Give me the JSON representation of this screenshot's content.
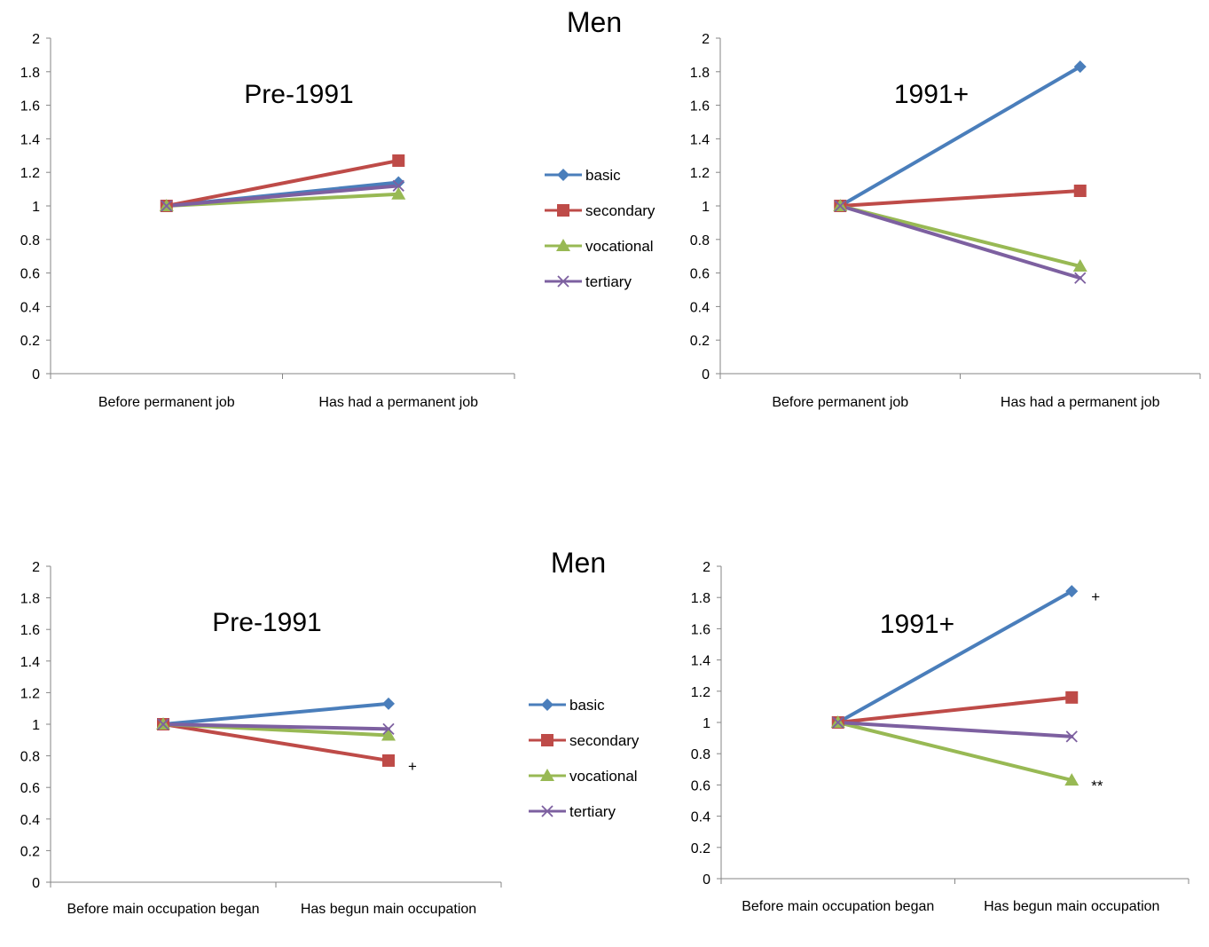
{
  "series_styles": [
    {
      "name": "basic",
      "color": "#4a7ebb",
      "marker": "diamond"
    },
    {
      "name": "secondary",
      "color": "#be4b48",
      "marker": "square"
    },
    {
      "name": "vocational",
      "color": "#98b954",
      "marker": "triangle"
    },
    {
      "name": "tertiary",
      "color": "#7d60a0",
      "marker": "x"
    }
  ],
  "chart_data": [
    {
      "type": "line",
      "group_title": "Men",
      "title": "Pre-1991",
      "categories": [
        "Before permanent job",
        "Has had a permanent job"
      ],
      "ylim": [
        0,
        2
      ],
      "yticks": [
        "0",
        "0.2",
        "0.4",
        "0.6",
        "0.8",
        "1",
        "1.2",
        "1.4",
        "1.6",
        "1.8",
        "2"
      ],
      "series": [
        {
          "name": "basic",
          "values": [
            1,
            1.14
          ]
        },
        {
          "name": "secondary",
          "values": [
            1,
            1.27
          ]
        },
        {
          "name": "vocational",
          "values": [
            1,
            1.07
          ]
        },
        {
          "name": "tertiary",
          "values": [
            1,
            1.12
          ]
        }
      ],
      "annotations": []
    },
    {
      "type": "line",
      "title": "1991+",
      "categories": [
        "Before permanent job",
        "Has had a permanent job"
      ],
      "ylim": [
        0,
        2
      ],
      "yticks": [
        "0",
        "0.2",
        "0.4",
        "0.6",
        "0.8",
        "1",
        "1.2",
        "1.4",
        "1.6",
        "1.8",
        "2"
      ],
      "series": [
        {
          "name": "basic",
          "values": [
            1,
            1.83
          ]
        },
        {
          "name": "secondary",
          "values": [
            1,
            1.09
          ]
        },
        {
          "name": "vocational",
          "values": [
            1,
            0.64
          ]
        },
        {
          "name": "tertiary",
          "values": [
            1,
            0.57
          ]
        }
      ],
      "annotations": []
    },
    {
      "type": "line",
      "group_title": "Men",
      "title": "Pre-1991",
      "categories": [
        "Before main occupation began",
        "Has begun main occupation"
      ],
      "ylim": [
        0,
        2
      ],
      "yticks": [
        "0",
        "0.2",
        "0.4",
        "0.6",
        "0.8",
        "1",
        "1.2",
        "1.4",
        "1.6",
        "1.8",
        "2"
      ],
      "series": [
        {
          "name": "basic",
          "values": [
            1,
            1.13
          ]
        },
        {
          "name": "secondary",
          "values": [
            1,
            0.77
          ]
        },
        {
          "name": "vocational",
          "values": [
            1,
            0.93
          ]
        },
        {
          "name": "tertiary",
          "values": [
            1,
            0.97
          ]
        }
      ],
      "annotations": [
        {
          "text": "+",
          "series": "secondary"
        }
      ]
    },
    {
      "type": "line",
      "title": "1991+",
      "categories": [
        "Before main occupation began",
        "Has begun main occupation"
      ],
      "ylim": [
        0,
        2
      ],
      "yticks": [
        "0",
        "0.2",
        "0.4",
        "0.6",
        "0.8",
        "1",
        "1.2",
        "1.4",
        "1.6",
        "1.8",
        "2"
      ],
      "series": [
        {
          "name": "basic",
          "values": [
            1,
            1.84
          ]
        },
        {
          "name": "secondary",
          "values": [
            1,
            1.16
          ]
        },
        {
          "name": "vocational",
          "values": [
            1,
            0.63
          ]
        },
        {
          "name": "tertiary",
          "values": [
            1,
            0.91
          ]
        }
      ],
      "annotations": [
        {
          "text": "+",
          "series": "basic"
        },
        {
          "text": "**",
          "series": "vocational"
        }
      ]
    }
  ]
}
